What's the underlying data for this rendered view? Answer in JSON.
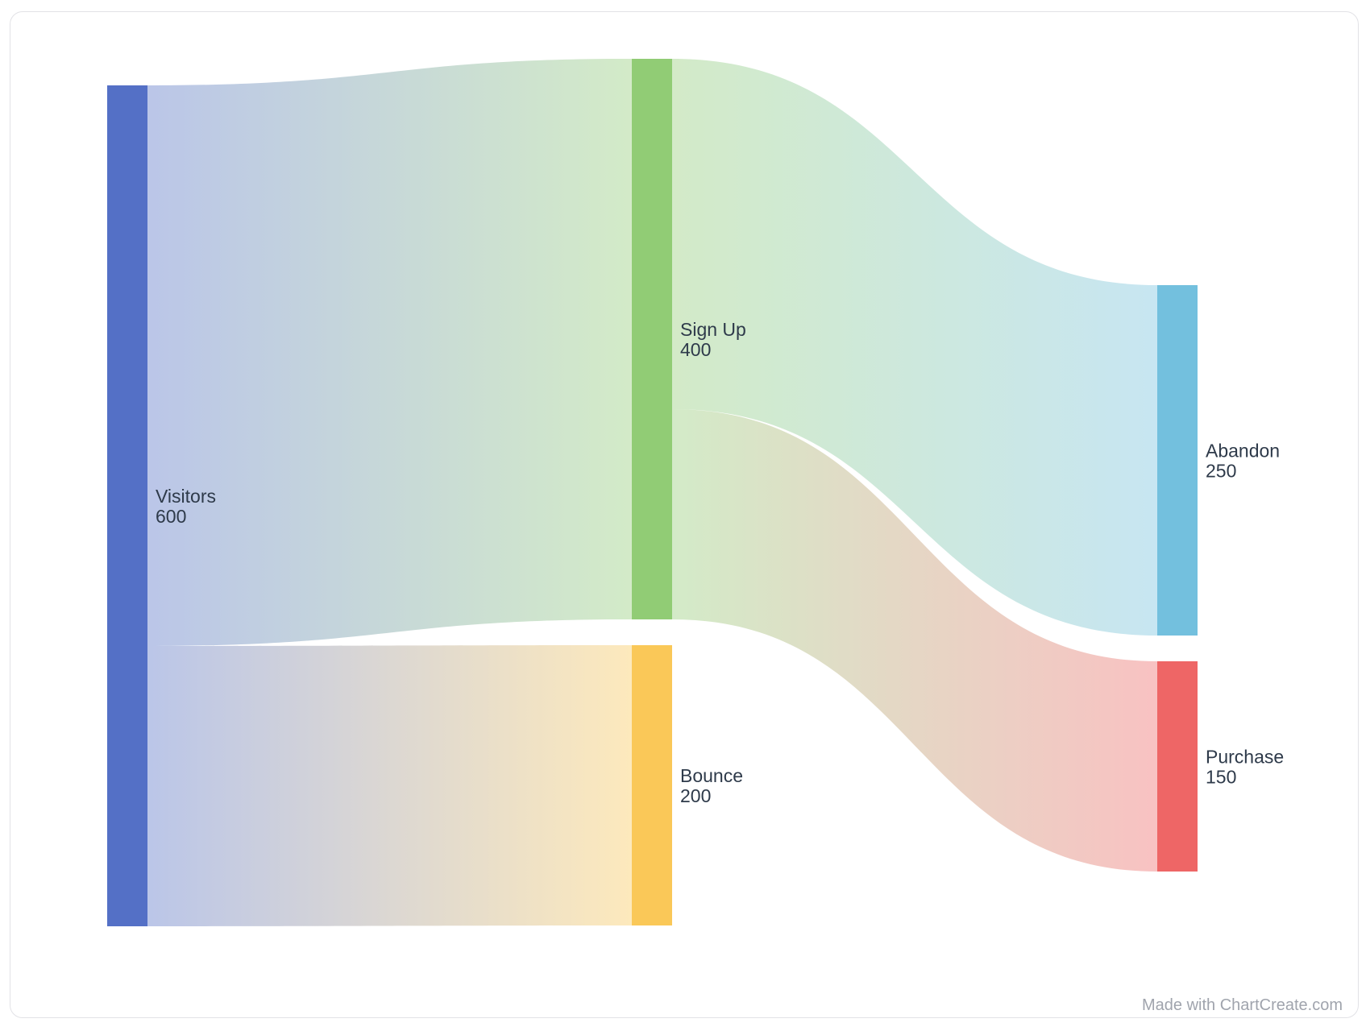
{
  "chart_data": {
    "type": "sankey",
    "nodes": [
      {
        "name": "Visitors",
        "value": 600,
        "color": "#5470c6"
      },
      {
        "name": "Sign Up",
        "value": 400,
        "color": "#91cc75"
      },
      {
        "name": "Bounce",
        "value": 200,
        "color": "#fac858"
      },
      {
        "name": "Abandon",
        "value": 250,
        "color": "#73c0de"
      },
      {
        "name": "Purchase",
        "value": 150,
        "color": "#ee6666"
      }
    ],
    "links": [
      {
        "source": 0,
        "target": 1,
        "value": 400
      },
      {
        "source": 0,
        "target": 2,
        "value": 200
      },
      {
        "source": 1,
        "target": 3,
        "value": 250
      },
      {
        "source": 1,
        "target": 4,
        "value": 150
      }
    ]
  },
  "watermark": "Made with ChartCreate.com"
}
